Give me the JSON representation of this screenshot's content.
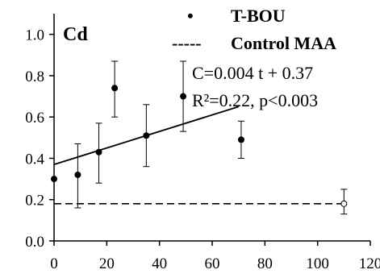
{
  "chart_data": {
    "type": "scatter",
    "panel_label": "Cd",
    "xlim": [
      0,
      120
    ],
    "ylim": [
      0.0,
      1.1
    ],
    "x_ticks": [
      0,
      20,
      40,
      60,
      80,
      100,
      120
    ],
    "y_ticks": [
      "0.0",
      "0.2",
      "0.4",
      "0.6",
      "0.8",
      "1.0"
    ],
    "grid": false,
    "legend_position": "top-right",
    "series": [
      {
        "name": "T-BOU",
        "marker": "filled-circle",
        "x": [
          0,
          9,
          17,
          23,
          35,
          49,
          71
        ],
        "y": [
          0.3,
          0.32,
          0.43,
          0.74,
          0.51,
          0.7,
          0.49
        ],
        "err_low": [
          null,
          0.16,
          0.28,
          0.6,
          0.36,
          0.53,
          0.4
        ],
        "err_high": [
          null,
          0.47,
          0.57,
          0.87,
          0.66,
          0.87,
          0.58
        ]
      },
      {
        "name": "Control MAA",
        "marker": "open-circle",
        "x": [
          110
        ],
        "y": [
          0.18
        ],
        "err_low": [
          0.13
        ],
        "err_high": [
          0.25
        ]
      }
    ],
    "control_line": {
      "y": 0.18,
      "x_range": [
        0,
        110
      ],
      "style": "dashed"
    },
    "fit_line": {
      "slope": 0.004,
      "intercept": 0.37,
      "x_range": [
        0,
        70
      ]
    },
    "legend": [
      {
        "symbol": "•",
        "label": "T-BOU"
      },
      {
        "symbol": "-----",
        "label": "Control MAA"
      }
    ],
    "annotations": [
      "C=0.004 t + 0.37",
      "R²=0.22, p<0.003"
    ]
  }
}
